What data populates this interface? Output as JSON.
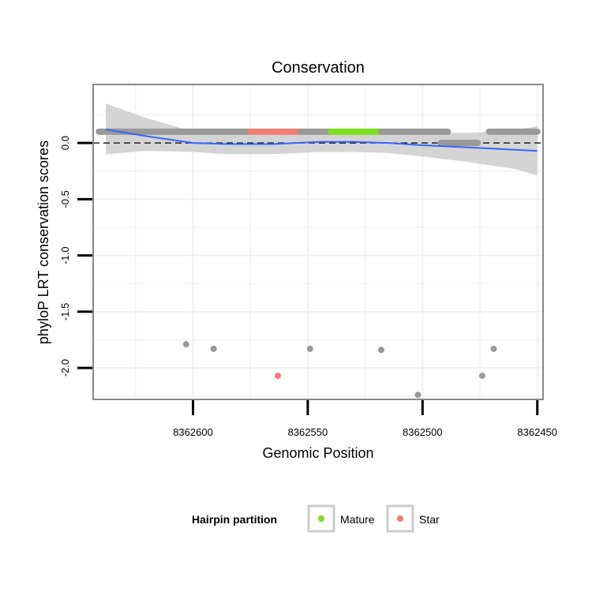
{
  "chart_data": {
    "type": "scatter",
    "title": "Conservation",
    "xlabel": "Genomic Position",
    "ylabel": "phyloP LRT conservation scores",
    "x_reversed": true,
    "xlim": [
      8362643.5,
      8362447.5
    ],
    "ylim": [
      -2.28,
      0.52
    ],
    "x_ticks": [
      8362600,
      8362550,
      8362500,
      8362450
    ],
    "x_tick_labels": [
      "8362600",
      "8362550",
      "8362500",
      "8362450"
    ],
    "y_ticks": [
      0.0,
      -0.5,
      -1.0,
      -1.5,
      -2.0
    ],
    "y_tick_labels": [
      "0.0",
      "-0.5",
      "-1.0",
      "-1.5",
      "-2.0"
    ],
    "reference_line": {
      "y": 0,
      "style": "dashed"
    },
    "colors": {
      "other": "#999999",
      "mature": "#7cde1f",
      "star": "#ef7f72",
      "smooth": "#3366ff",
      "ribbon": "#cccccc",
      "grid": "#f0f0f0",
      "frame": "#888888"
    },
    "segments": [
      {
        "group": "other",
        "x_start": 8362641,
        "x_end": 8362575,
        "y": 0.1
      },
      {
        "group": "star",
        "x_start": 8362575,
        "x_end": 8362553,
        "y": 0.1
      },
      {
        "group": "other",
        "x_start": 8362553,
        "x_end": 8362540,
        "y": 0.1
      },
      {
        "group": "mature",
        "x_start": 8362540,
        "x_end": 8362518,
        "y": 0.1
      },
      {
        "group": "other",
        "x_start": 8362518,
        "x_end": 8362489,
        "y": 0.1
      },
      {
        "group": "other",
        "x_start": 8362492,
        "x_end": 8362476,
        "y": 0.0
      },
      {
        "group": "other",
        "x_start": 8362471,
        "x_end": 8362450,
        "y": 0.1
      }
    ],
    "points": [
      {
        "x": 8362603,
        "y": -1.79,
        "group": "other"
      },
      {
        "x": 8362591,
        "y": -1.83,
        "group": "other"
      },
      {
        "x": 8362563,
        "y": -2.07,
        "group": "star"
      },
      {
        "x": 8362549,
        "y": -1.83,
        "group": "other"
      },
      {
        "x": 8362518,
        "y": -1.84,
        "group": "other"
      },
      {
        "x": 8362502,
        "y": -2.24,
        "group": "other"
      },
      {
        "x": 8362474,
        "y": -2.07,
        "group": "other"
      },
      {
        "x": 8362469,
        "y": -1.83,
        "group": "other"
      }
    ],
    "smooth": {
      "x": [
        8362638,
        8362620,
        8362600,
        8362585,
        8362565,
        8362545,
        8362530,
        8362515,
        8362500,
        8362480,
        8362460,
        8362450
      ],
      "y": [
        0.12,
        0.06,
        0.0,
        -0.01,
        -0.01,
        0.01,
        0.01,
        0.0,
        -0.02,
        -0.04,
        -0.06,
        -0.07
      ],
      "lower": [
        -0.1,
        -0.07,
        -0.08,
        -0.1,
        -0.1,
        -0.08,
        -0.08,
        -0.09,
        -0.12,
        -0.17,
        -0.23,
        -0.29
      ],
      "upper": [
        0.35,
        0.22,
        0.1,
        0.09,
        0.09,
        0.1,
        0.1,
        0.09,
        0.09,
        0.09,
        0.11,
        0.15
      ]
    },
    "legend": {
      "title": "Hairpin partition",
      "position": "bottom",
      "entries": [
        {
          "label": "Mature",
          "color": "#7cde1f"
        },
        {
          "label": "Star",
          "color": "#ef7f72"
        }
      ]
    }
  }
}
